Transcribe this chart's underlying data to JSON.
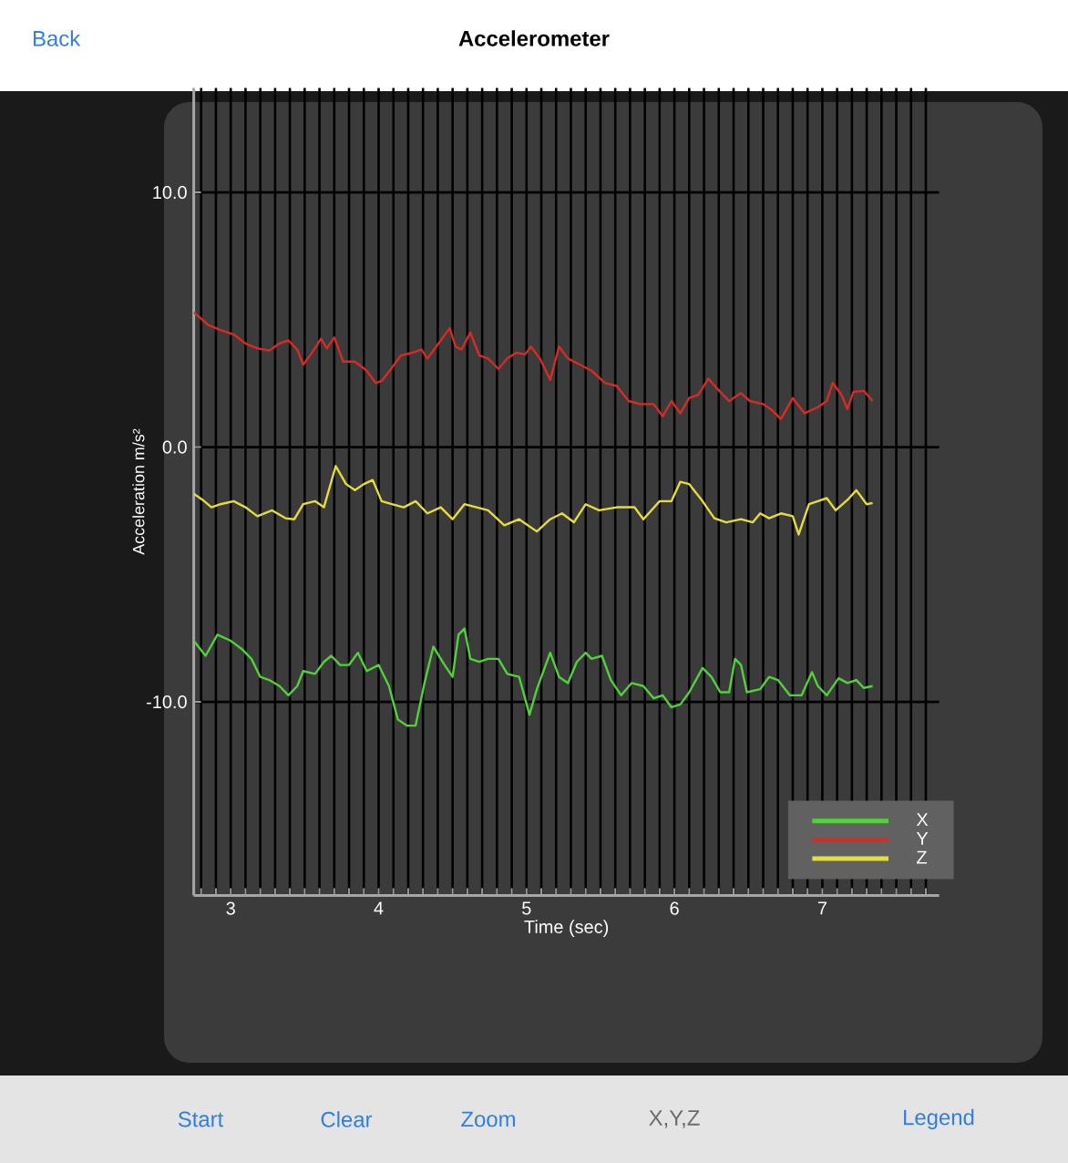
{
  "chart_data": {
    "type": "line",
    "title": "Accelerometer",
    "xlabel": "Time (sec)",
    "ylabel": "Acceleration m/s²",
    "xlim": [
      2.75,
      7.79
    ],
    "ylim": [
      -17.6,
      14.1
    ],
    "xticks": [
      {
        "value": 2.8,
        "label": null
      },
      {
        "value": 2.9,
        "label": null
      },
      3,
      {
        "value": 3.1,
        "label": null
      },
      {
        "value": 3.2,
        "label": null
      },
      {
        "value": 3.3,
        "label": null
      },
      {
        "value": 3.4,
        "label": null
      },
      {
        "value": 3.5,
        "label": null
      },
      {
        "value": 3.6,
        "label": null
      },
      {
        "value": 3.7,
        "label": null
      },
      {
        "value": 3.8,
        "label": null
      },
      {
        "value": 3.9,
        "label": null
      },
      4,
      {
        "value": 4.1,
        "label": null
      },
      {
        "value": 4.2,
        "label": null
      },
      {
        "value": 4.3,
        "label": null
      },
      {
        "value": 4.4,
        "label": null
      },
      {
        "value": 4.5,
        "label": null
      },
      {
        "value": 4.6,
        "label": null
      },
      {
        "value": 4.7,
        "label": null
      },
      {
        "value": 4.8,
        "label": null
      },
      {
        "value": 4.9,
        "label": null
      },
      5,
      {
        "value": 5.1,
        "label": null
      },
      {
        "value": 5.2,
        "label": null
      },
      {
        "value": 5.3,
        "label": null
      },
      {
        "value": 5.4,
        "label": null
      },
      {
        "value": 5.5,
        "label": null
      },
      {
        "value": 5.6,
        "label": null
      },
      {
        "value": 5.7,
        "label": null
      },
      {
        "value": 5.8,
        "label": null
      },
      {
        "value": 5.9,
        "label": null
      },
      6,
      {
        "value": 6.1,
        "label": null
      },
      {
        "value": 6.2,
        "label": null
      },
      {
        "value": 6.3,
        "label": null
      },
      {
        "value": 6.4,
        "label": null
      },
      {
        "value": 6.5,
        "label": null
      },
      {
        "value": 6.6,
        "label": null
      },
      {
        "value": 6.7,
        "label": null
      },
      {
        "value": 6.8,
        "label": null
      },
      {
        "value": 6.9,
        "label": null
      },
      7,
      {
        "value": 7.1,
        "label": null
      },
      {
        "value": 7.2,
        "label": null
      },
      {
        "value": 7.3,
        "label": null
      },
      {
        "value": 7.4,
        "label": null
      },
      {
        "value": 7.5,
        "label": null
      },
      {
        "value": 7.6,
        "label": null
      },
      {
        "value": 7.7,
        "label": null
      }
    ],
    "yticks": [
      {
        "value": -10,
        "label": "-10.0"
      },
      {
        "value": 0,
        "label": "0.0"
      },
      {
        "value": 10,
        "label": "10.0"
      }
    ],
    "grid": true,
    "legend": "bottom right",
    "annotations": [
      "Back",
      "Start",
      "Clear",
      "Zoom",
      "X,Y,Z",
      "Legend"
    ],
    "series": [
      {
        "name": "X",
        "color": "#52d13a",
        "x": [
          2.75,
          2.83,
          2.91,
          3.0,
          3.08,
          3.14,
          3.2,
          3.26,
          3.33,
          3.39,
          3.45,
          3.49,
          3.57,
          3.63,
          3.68,
          3.74,
          3.8,
          3.86,
          3.92,
          4.0,
          4.07,
          4.13,
          4.19,
          4.25,
          4.31,
          4.37,
          4.44,
          4.5,
          4.54,
          4.58,
          4.62,
          4.68,
          4.74,
          4.81,
          4.87,
          4.95,
          5.02,
          5.07,
          5.16,
          5.22,
          5.28,
          5.34,
          5.4,
          5.44,
          5.51,
          5.57,
          5.64,
          5.71,
          5.79,
          5.86,
          5.92,
          5.98,
          6.04,
          6.1,
          6.19,
          6.25,
          6.31,
          6.37,
          6.41,
          6.45,
          6.49,
          6.58,
          6.64,
          6.7,
          6.78,
          6.86,
          6.93,
          6.97,
          7.03,
          7.11,
          7.17,
          7.23,
          7.28,
          7.34
        ],
        "values": [
          -7.6,
          -8.19,
          -7.36,
          -7.6,
          -7.95,
          -8.31,
          -9.02,
          -9.14,
          -9.38,
          -9.74,
          -9.38,
          -8.79,
          -8.9,
          -8.43,
          -8.19,
          -8.55,
          -8.55,
          -8.07,
          -8.79,
          -8.55,
          -9.38,
          -10.69,
          -10.93,
          -10.93,
          -9.26,
          -7.83,
          -8.5,
          -9.02,
          -7.36,
          -7.12,
          -8.31,
          -8.43,
          -8.31,
          -8.31,
          -8.9,
          -9.02,
          -10.5,
          -9.5,
          -8.07,
          -9.02,
          -9.26,
          -8.43,
          -8.07,
          -8.31,
          -8.19,
          -9.14,
          -9.74,
          -9.26,
          -9.38,
          -9.86,
          -9.74,
          -10.21,
          -10.1,
          -9.62,
          -8.67,
          -9.02,
          -9.62,
          -9.62,
          -8.31,
          -8.55,
          -9.62,
          -9.5,
          -9.02,
          -9.14,
          -9.74,
          -9.74,
          -8.83,
          -9.38,
          -9.74,
          -9.07,
          -9.26,
          -9.14,
          -9.45,
          -9.38
        ]
      },
      {
        "name": "Y",
        "color": "#d92b25",
        "x": [
          2.75,
          2.85,
          2.93,
          3.02,
          3.1,
          3.18,
          3.26,
          3.33,
          3.39,
          3.45,
          3.49,
          3.55,
          3.61,
          3.65,
          3.7,
          3.76,
          3.84,
          3.92,
          3.98,
          4.02,
          4.09,
          4.15,
          4.23,
          4.29,
          4.33,
          4.42,
          4.48,
          4.52,
          4.56,
          4.62,
          4.68,
          4.74,
          4.81,
          4.87,
          4.93,
          4.99,
          5.03,
          5.09,
          5.16,
          5.22,
          5.28,
          5.36,
          5.44,
          5.53,
          5.61,
          5.69,
          5.77,
          5.86,
          5.92,
          5.98,
          6.04,
          6.1,
          6.16,
          6.23,
          6.29,
          6.37,
          6.45,
          6.51,
          6.6,
          6.66,
          6.72,
          6.8,
          6.88,
          6.97,
          7.03,
          7.07,
          7.13,
          7.17,
          7.21,
          7.28,
          7.34
        ],
        "values": [
          5.29,
          4.79,
          4.6,
          4.43,
          4.07,
          3.88,
          3.79,
          4.07,
          4.19,
          3.83,
          3.24,
          3.71,
          4.26,
          3.88,
          4.31,
          3.36,
          3.36,
          3.0,
          2.52,
          2.6,
          3.12,
          3.6,
          3.71,
          3.83,
          3.48,
          4.19,
          4.67,
          3.95,
          3.83,
          4.5,
          3.6,
          3.48,
          3.07,
          3.48,
          3.71,
          3.64,
          3.95,
          3.48,
          2.64,
          3.95,
          3.48,
          3.24,
          3.0,
          2.52,
          2.4,
          1.81,
          1.69,
          1.69,
          1.21,
          1.81,
          1.33,
          1.93,
          2.05,
          2.69,
          2.29,
          1.81,
          2.12,
          1.81,
          1.69,
          1.45,
          1.1,
          1.93,
          1.33,
          1.57,
          1.81,
          2.52,
          2.05,
          1.5,
          2.17,
          2.21,
          1.81
        ]
      },
      {
        "name": "Z",
        "color": "#e6dc3c",
        "x": [
          2.75,
          2.81,
          2.87,
          2.93,
          3.02,
          3.1,
          3.18,
          3.28,
          3.37,
          3.43,
          3.49,
          3.57,
          3.63,
          3.71,
          3.78,
          3.84,
          3.9,
          3.96,
          4.02,
          4.09,
          4.17,
          4.25,
          4.33,
          4.42,
          4.5,
          4.58,
          4.66,
          4.74,
          4.85,
          4.95,
          5.07,
          5.16,
          5.24,
          5.32,
          5.4,
          5.49,
          5.61,
          5.73,
          5.79,
          5.9,
          5.98,
          6.04,
          6.1,
          6.19,
          6.27,
          6.35,
          6.45,
          6.53,
          6.58,
          6.64,
          6.72,
          6.8,
          6.84,
          6.91,
          6.97,
          7.03,
          7.09,
          7.17,
          7.23,
          7.3,
          7.34
        ],
        "values": [
          -1.83,
          -2.07,
          -2.36,
          -2.24,
          -2.12,
          -2.36,
          -2.71,
          -2.48,
          -2.79,
          -2.83,
          -2.24,
          -2.12,
          -2.36,
          -0.74,
          -1.45,
          -1.69,
          -1.45,
          -1.29,
          -2.12,
          -2.24,
          -2.36,
          -2.12,
          -2.6,
          -2.36,
          -2.83,
          -2.24,
          -2.36,
          -2.48,
          -3.07,
          -2.83,
          -3.31,
          -2.83,
          -2.6,
          -2.95,
          -2.24,
          -2.48,
          -2.36,
          -2.36,
          -2.83,
          -2.12,
          -2.12,
          -1.36,
          -1.45,
          -2.12,
          -2.79,
          -2.95,
          -2.83,
          -2.95,
          -2.6,
          -2.79,
          -2.6,
          -2.71,
          -3.43,
          -2.24,
          -2.12,
          -2.0,
          -2.48,
          -2.07,
          -1.69,
          -2.24,
          -2.19
        ]
      }
    ]
  }
}
